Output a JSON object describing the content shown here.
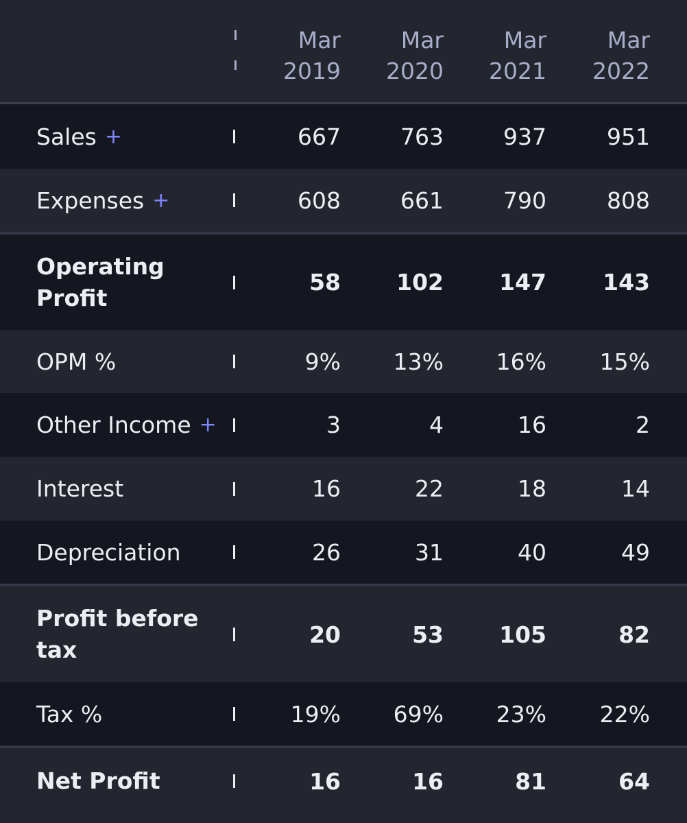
{
  "columns": [
    {
      "month": "Mar",
      "year": "2019"
    },
    {
      "month": "Mar",
      "year": "2020"
    },
    {
      "month": "Mar",
      "year": "2021"
    },
    {
      "month": "Mar",
      "year": "2022"
    }
  ],
  "expand_symbol": "+",
  "rows": [
    {
      "label": "Sales",
      "expandable": true,
      "bold": false,
      "values": [
        "667",
        "763",
        "937",
        "951"
      ]
    },
    {
      "label": "Expenses",
      "expandable": true,
      "bold": false,
      "values": [
        "608",
        "661",
        "790",
        "808"
      ]
    },
    {
      "label": "Operating Profit",
      "expandable": false,
      "bold": true,
      "values": [
        "58",
        "102",
        "147",
        "143"
      ]
    },
    {
      "label": "OPM %",
      "expandable": false,
      "bold": false,
      "values": [
        "9%",
        "13%",
        "16%",
        "15%"
      ]
    },
    {
      "label": "Other Income",
      "expandable": true,
      "bold": false,
      "values": [
        "3",
        "4",
        "16",
        "2"
      ]
    },
    {
      "label": "Interest",
      "expandable": false,
      "bold": false,
      "values": [
        "16",
        "22",
        "18",
        "14"
      ]
    },
    {
      "label": "Depreciation",
      "expandable": false,
      "bold": false,
      "values": [
        "26",
        "31",
        "40",
        "49"
      ]
    },
    {
      "label": "Profit before tax",
      "expandable": false,
      "bold": true,
      "values": [
        "20",
        "53",
        "105",
        "82"
      ]
    },
    {
      "label": "Tax %",
      "expandable": false,
      "bold": false,
      "values": [
        "19%",
        "69%",
        "23%",
        "22%"
      ]
    },
    {
      "label": "Net Profit",
      "expandable": false,
      "bold": true,
      "values": [
        "16",
        "16",
        "81",
        "64"
      ]
    }
  ],
  "colors": {
    "background": "#23252f",
    "row_dark": "#141720",
    "text": "#eceef3",
    "header_text": "#a8adc9",
    "accent_plus": "#7c86ff"
  }
}
